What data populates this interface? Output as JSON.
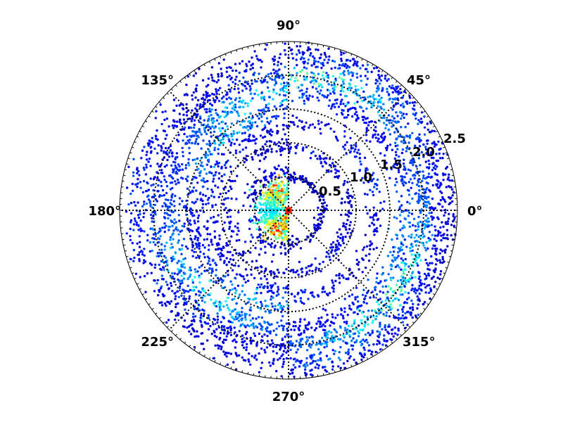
{
  "chart_data": {
    "type": "scatter",
    "projection": "polar",
    "title": "",
    "xlabel": "",
    "ylabel": "",
    "rlim": [
      0,
      2.5
    ],
    "grid": true,
    "legend": "none",
    "theta_tick_labels": [
      "0°",
      "45°",
      "90°",
      "135°",
      "180°",
      "225°",
      "270°",
      "315°"
    ],
    "r_tick_labels": [
      "0.5",
      "1.0",
      "1.5",
      "2.0",
      "2.5"
    ],
    "r_tick_values": [
      0.5,
      1.0,
      1.5,
      2.0,
      2.5
    ],
    "colormap": "jet",
    "colormap_colors": [
      "#00007f",
      "#0000ff",
      "#007fff",
      "#00ffff",
      "#7fff7f",
      "#ffff00",
      "#ff7f00",
      "#ff0000",
      "#7f0000"
    ],
    "rings": [
      {
        "theta_range_deg": [
          90,
          270
        ],
        "r_center": 0.3,
        "r_spread": 0.1,
        "count": 500,
        "intensity": 0.62
      },
      {
        "theta_range_deg": [
          90,
          270
        ],
        "r_center": 0.6,
        "r_spread": 0.07,
        "count": 110,
        "intensity": 0.12
      },
      {
        "theta_range_deg": [
          90,
          270
        ],
        "r_center": 0.95,
        "r_spread": 0.06,
        "count": 140,
        "intensity": 0.12
      },
      {
        "theta_range_deg": [
          90,
          270
        ],
        "r_center": 1.2,
        "r_spread": 0.07,
        "count": 230,
        "intensity": 0.16
      },
      {
        "theta_range_deg": [
          90,
          270
        ],
        "r_center": 1.45,
        "r_spread": 0.08,
        "count": 350,
        "intensity": 0.25
      },
      {
        "theta_range_deg": [
          90,
          270
        ],
        "r_center": 1.75,
        "r_spread": 0.08,
        "count": 480,
        "intensity": 0.3
      },
      {
        "theta_range_deg": [
          90,
          270
        ],
        "r_center": 2.0,
        "r_spread": 0.08,
        "count": 450,
        "intensity": 0.2
      },
      {
        "theta_range_deg": [
          90,
          270
        ],
        "r_center": 2.25,
        "r_spread": 0.1,
        "count": 400,
        "intensity": 0.15
      },
      {
        "theta_range_deg": [
          -90,
          90
        ],
        "r_center": 0.5,
        "r_spread": 0.04,
        "count": 120,
        "intensity": 0.1
      },
      {
        "theta_range_deg": [
          -90,
          90
        ],
        "r_center": 0.9,
        "r_spread": 0.05,
        "count": 160,
        "intensity": 0.12
      },
      {
        "theta_range_deg": [
          -90,
          90
        ],
        "r_center": 1.3,
        "r_spread": 0.06,
        "count": 200,
        "intensity": 0.15
      },
      {
        "theta_range_deg": [
          -90,
          90
        ],
        "r_center": 1.75,
        "r_spread": 0.08,
        "count": 400,
        "intensity": 0.22
      },
      {
        "theta_range_deg": [
          -90,
          90
        ],
        "r_center": 2.0,
        "r_spread": 0.07,
        "count": 550,
        "intensity": 0.35
      },
      {
        "theta_range_deg": [
          -90,
          90
        ],
        "r_center": 2.25,
        "r_spread": 0.08,
        "count": 480,
        "intensity": 0.2
      },
      {
        "theta_range_deg": [
          -90,
          90
        ],
        "r_center": 2.4,
        "r_spread": 0.05,
        "count": 260,
        "intensity": 0.12
      }
    ]
  }
}
